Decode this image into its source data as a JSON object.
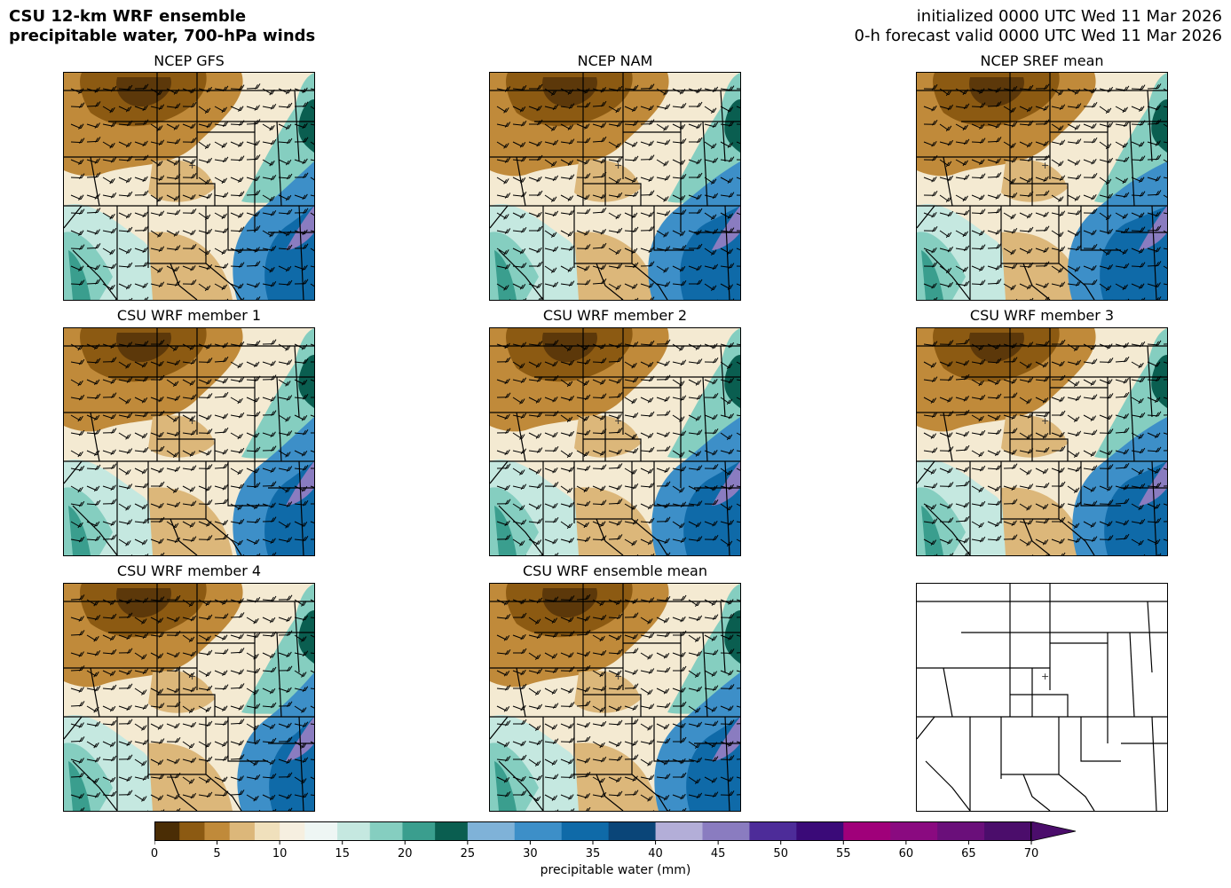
{
  "header": {
    "title_line1": "CSU 12-km WRF ensemble",
    "title_line2": "precipitable water, 700-hPa winds",
    "init_line": "initialized 0000 UTC Wed 11 Mar 2026",
    "valid_line": "0-h forecast valid 0000 UTC Wed 11 Mar 2026"
  },
  "panels": [
    {
      "title": "NCEP GFS",
      "kind": "field"
    },
    {
      "title": "NCEP NAM",
      "kind": "field"
    },
    {
      "title": "NCEP SREF mean",
      "kind": "field"
    },
    {
      "title": "CSU WRF member 1",
      "kind": "field"
    },
    {
      "title": "CSU WRF member 2",
      "kind": "field"
    },
    {
      "title": "CSU WRF member 3",
      "kind": "field"
    },
    {
      "title": "CSU WRF member 4",
      "kind": "field"
    },
    {
      "title": "CSU WRF ensemble mean",
      "kind": "field"
    },
    {
      "title": "",
      "kind": "basemap"
    }
  ],
  "colorbar": {
    "label": "precipitable water (mm)",
    "ticks": [
      "0",
      "5",
      "10",
      "15",
      "20",
      "25",
      "30",
      "35",
      "40",
      "45",
      "50",
      "55",
      "60",
      "65",
      "70"
    ],
    "segments": [
      {
        "from": 0,
        "to": 12,
        "colors": [
          "#4a2d05",
          "#8c5a12",
          "#c08a3a",
          "#dcb77a",
          "#f0e0bc",
          "#f6efe0"
        ]
      },
      {
        "from": 12,
        "to": 25,
        "colors": [
          "#eef6f4",
          "#c5e8e0",
          "#85cec0",
          "#3a9e8e",
          "#0a5e50"
        ]
      },
      {
        "from": 25,
        "to": 40,
        "colors": [
          "#7fb2d8",
          "#3d8fc8",
          "#0f6aa8",
          "#0a4578"
        ]
      },
      {
        "from": 40,
        "to": 55,
        "colors": [
          "#b3aed8",
          "#8a7cc0",
          "#4d2c99",
          "#3a0a78"
        ]
      },
      {
        "from": 55,
        "to": 70,
        "colors": [
          "#a0007a",
          "#8a0a80",
          "#6a0f7a",
          "#4b0d6b"
        ]
      }
    ]
  },
  "colors": {
    "dry_brown": "#8c5a12",
    "moist_blue": "#0f6aa8",
    "teal": "#3a9e8e",
    "purple": "#8a7cc0"
  }
}
